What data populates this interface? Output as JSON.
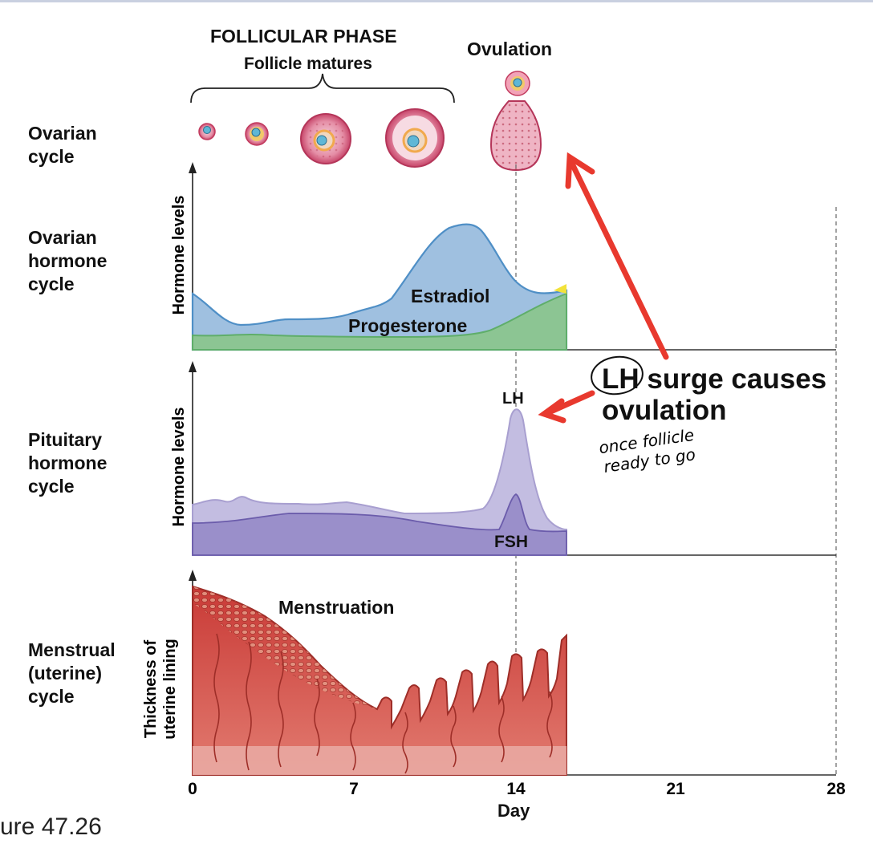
{
  "header": {
    "phase_title": "FOLLICULAR PHASE",
    "phase_subtitle": "Follicle matures",
    "ovulation": "Ovulation"
  },
  "rows": {
    "ovarian": "Ovarian\ncycle",
    "ovarian_hormone": "Ovarian\nhormone\ncycle",
    "pituitary": "Pituitary\nhormone\ncycle",
    "menstrual": "Menstrual\n(uterine)\ncycle"
  },
  "y_labels": {
    "hormone_1": "Hormone levels",
    "hormone_2": "Hormone levels",
    "thickness": "Thickness of\nuterine lining"
  },
  "curve_labels": {
    "estradiol": "Estradiol",
    "progesterone": "Progesterone",
    "lh": "LH",
    "fsh": "FSH",
    "menstruation": "Menstruation"
  },
  "x_axis": {
    "label": "Day",
    "ticks": [
      "0",
      "7",
      "14",
      "21",
      "28"
    ]
  },
  "annotation": {
    "line1": "LH surge causes",
    "line2": "ovulation",
    "hand1": "once follicle",
    "hand2": "ready to go"
  },
  "caption": "ure 47.26",
  "colors": {
    "estradiol": "#4f8fc6",
    "progesterone": "#5fae6a",
    "lh": "#a89fd0",
    "fsh": "#8a7cc0",
    "uterine": "#d9534f",
    "arrow": "#e8392e"
  }
}
